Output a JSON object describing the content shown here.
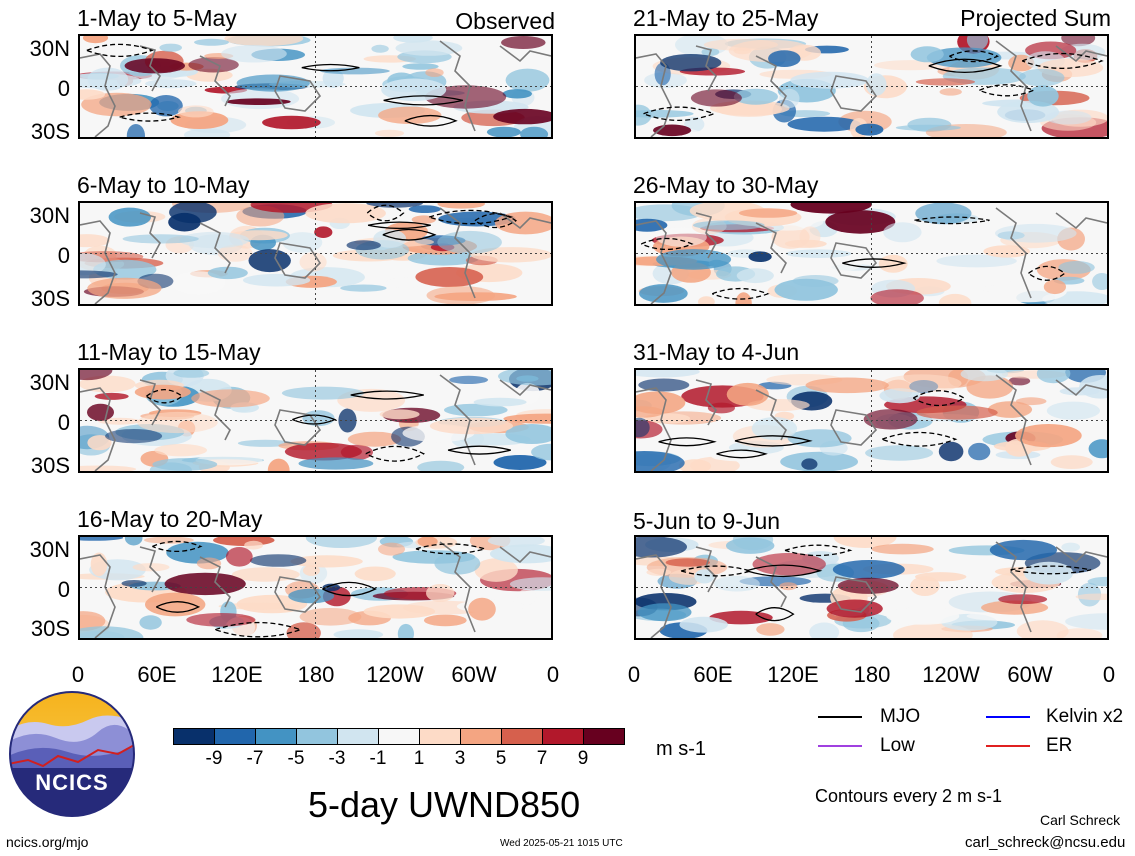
{
  "observed_label": "Observed",
  "projected_label": "Projected Sum",
  "panels_left": [
    {
      "title": "1-May to 5-May"
    },
    {
      "title": "6-May to 10-May"
    },
    {
      "title": "11-May to 15-May"
    },
    {
      "title": "16-May to 20-May"
    }
  ],
  "panels_right": [
    {
      "title": "21-May to 25-May"
    },
    {
      "title": "26-May to 30-May"
    },
    {
      "title": "31-May to 4-Jun"
    },
    {
      "title": "5-Jun to 9-Jun"
    }
  ],
  "lat_labels": [
    "30N",
    "0",
    "30S"
  ],
  "lon_labels": [
    "0",
    "60E",
    "120E",
    "180",
    "120W",
    "60W",
    "0"
  ],
  "colorbar": {
    "colors": [
      "#08306b",
      "#2166ac",
      "#4393c3",
      "#92c5de",
      "#d1e5f0",
      "#f7f7f7",
      "#fddbc7",
      "#f4a582",
      "#d6604d",
      "#b2182b",
      "#67001f"
    ],
    "labels": [
      "-9",
      "-7",
      "-5",
      "-3",
      "-1",
      "1",
      "3",
      "5",
      "7",
      "9"
    ],
    "unit": "m s-1"
  },
  "legend": {
    "mjo": {
      "label": "MJO",
      "color": "#000000"
    },
    "kelvin": {
      "label": "Kelvin x2",
      "color": "#0000ff"
    },
    "low": {
      "label": "Low",
      "color": "#a040e0"
    },
    "er": {
      "label": "ER",
      "color": "#e02020"
    }
  },
  "contour_note": "Contours every 2 m s-1",
  "main_title": "5-day UWND850",
  "logo_text": "NCICS",
  "site_url": "ncics.org/mjo",
  "timestamp": "Wed 2025-05-21 1015 UTC",
  "author_name": "Carl Schreck",
  "author_email": "carl_schreck@ncsu.edu"
}
